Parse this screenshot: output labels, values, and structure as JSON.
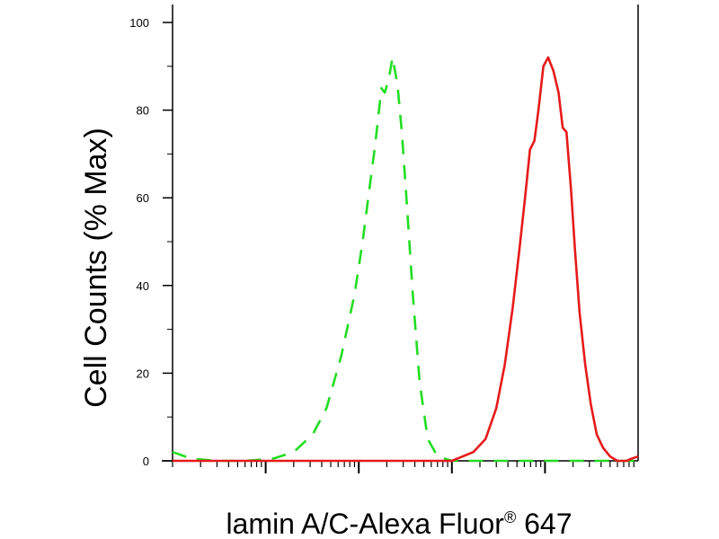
{
  "chart_data": {
    "type": "line",
    "title": "",
    "xlabel": "lamin A/C-Alexa Fluor® 647",
    "xlabel_main": "lamin A/C-Alexa Fluor",
    "xlabel_reg": "®",
    "xlabel_tail": " 647",
    "ylabel": "Cell Counts (% Max)",
    "x_scale": "log",
    "xlim": [
      1,
      100000
    ],
    "ylim": [
      0,
      100
    ],
    "yticks": [
      0,
      20,
      40,
      60,
      80,
      100
    ],
    "ytick_labels": [
      "0",
      "20",
      "40",
      "60",
      "80",
      "100"
    ],
    "grid": false,
    "legend": "none",
    "series": [
      {
        "style": "dashed",
        "color": "#22dd22",
        "x": [
          1.0,
          1.6,
          3.0,
          6.0,
          12,
          20,
          32,
          45,
          65,
          90,
          110,
          130,
          150,
          165,
          175,
          190,
          210,
          230,
          260,
          290,
          330,
          380,
          450,
          550,
          700,
          1000,
          1500,
          3000,
          10000,
          30000,
          100000
        ],
        "y": [
          2,
          0.5,
          0,
          0,
          0.5,
          2,
          6,
          12,
          24,
          38,
          50,
          62,
          72,
          80,
          85,
          84,
          87,
          92,
          86,
          75,
          58,
          38,
          18,
          5,
          1,
          0,
          0,
          0,
          0,
          0,
          0
        ]
      },
      {
        "style": "solid",
        "color": "#e61a1a",
        "x": [
          1.0,
          100,
          500,
          1000,
          1700,
          2300,
          3000,
          3700,
          4500,
          5300,
          6100,
          6900,
          7700,
          8500,
          9600,
          10800,
          12300,
          14000,
          15500,
          17000,
          19000,
          21000,
          23500,
          27000,
          31000,
          36000,
          42000,
          50000,
          60000,
          75000,
          85000,
          100000
        ],
        "y": [
          0,
          0,
          0,
          0,
          2,
          5,
          12,
          22,
          35,
          48,
          60,
          71,
          73,
          80,
          90,
          92,
          89,
          84,
          76,
          75,
          62,
          48,
          34,
          22,
          13,
          6,
          3,
          1,
          0,
          0,
          0.5,
          1
        ]
      }
    ]
  }
}
